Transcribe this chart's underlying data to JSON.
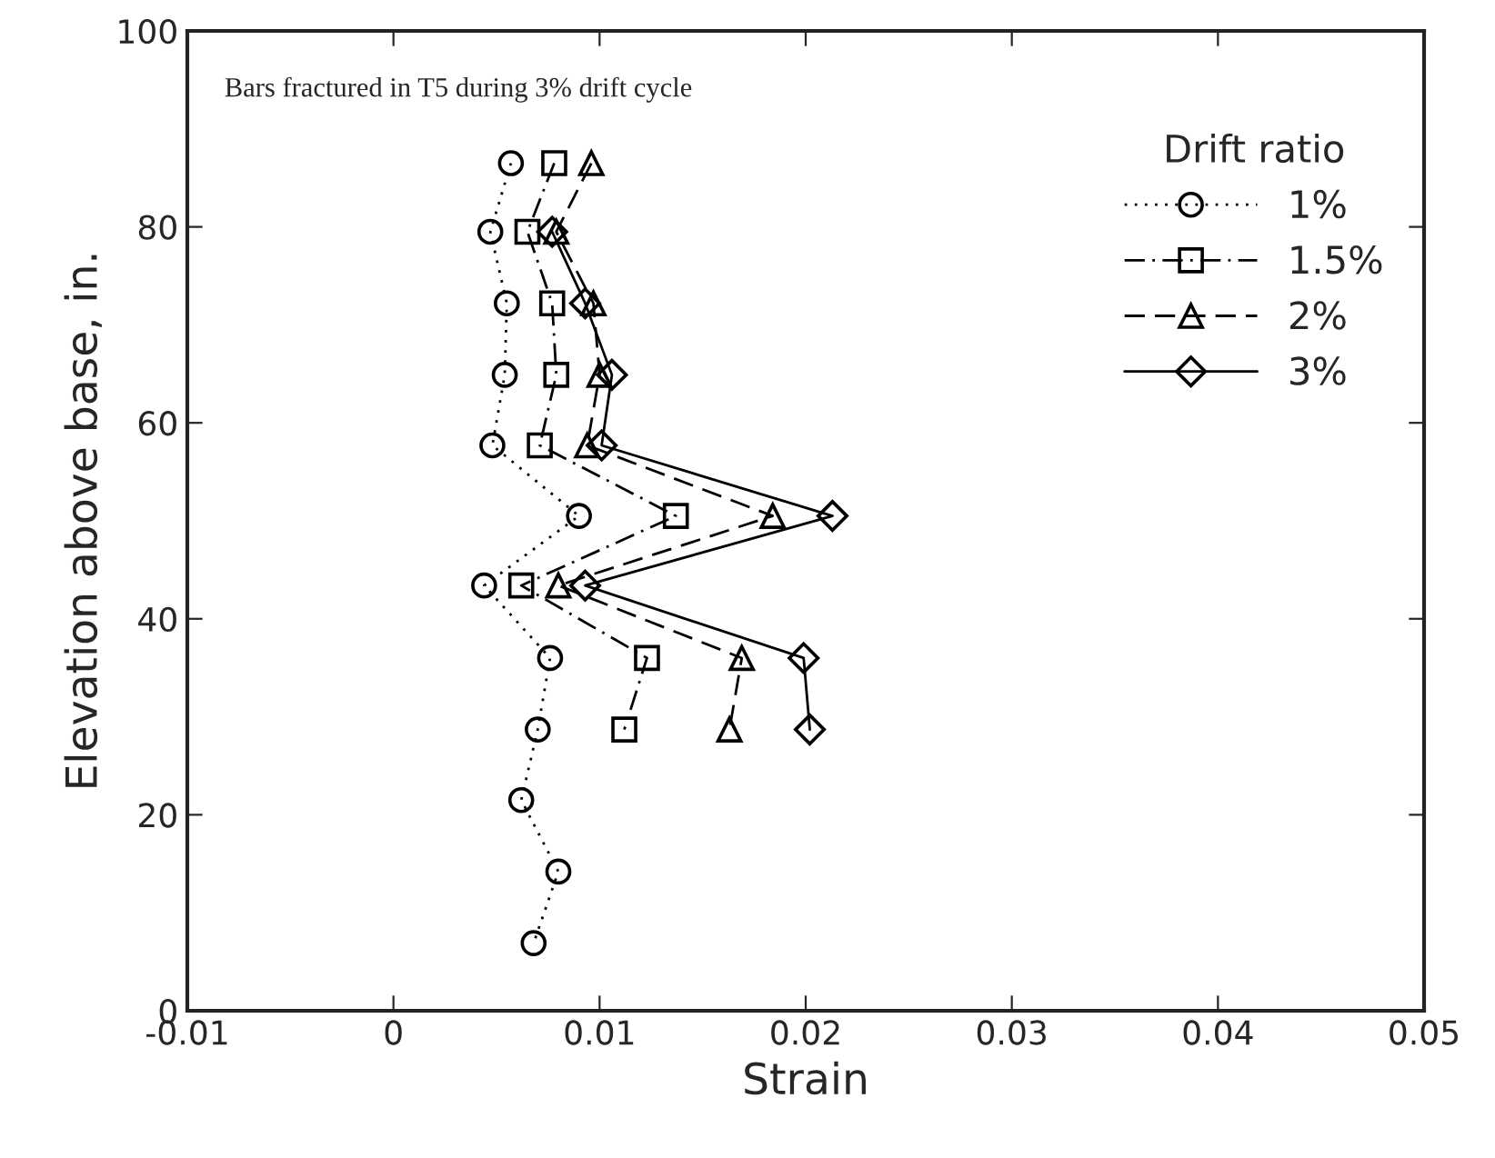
{
  "chart_data": {
    "type": "line",
    "xlabel": "Strain",
    "ylabel": "Elevation above base, in.",
    "legend_title": "Drift ratio",
    "legend": "top right",
    "grid": false,
    "xlim": [
      -0.01,
      0.05
    ],
    "xticks": [
      -0.01,
      0,
      0.01,
      0.02,
      0.03,
      0.04,
      0.05
    ],
    "ylim": [
      0,
      100
    ],
    "yticks": [
      0,
      20,
      40,
      60,
      80,
      100
    ],
    "annotations": [
      "Bars fractured in T5 during 3% drift cycle"
    ],
    "series": [
      {
        "name": "1%",
        "color": "#000000",
        "marker": "circle",
        "line_style": "dotted",
        "x": [
          0.0057,
          0.0047,
          0.0055,
          0.0054,
          0.0048,
          0.009,
          0.0044,
          0.0076,
          0.007,
          0.0062,
          0.008,
          0.0068
        ],
        "values": [
          86.5,
          79.5,
          72.2,
          64.9,
          57.7,
          50.5,
          43.4,
          36.0,
          28.7,
          21.5,
          14.2,
          6.9
        ]
      },
      {
        "name": "1.5%",
        "color": "#000000",
        "marker": "square",
        "line_style": "dashdot",
        "x": [
          0.0078,
          0.0065,
          0.0077,
          0.0079,
          0.0071,
          0.0137,
          0.0062,
          0.0123,
          0.0112
        ],
        "values": [
          86.5,
          79.5,
          72.2,
          64.9,
          57.7,
          50.5,
          43.4,
          36.0,
          28.7
        ]
      },
      {
        "name": "2%",
        "color": "#000000",
        "marker": "triangle",
        "line_style": "dashed",
        "x": [
          0.0096,
          0.0079,
          0.0097,
          0.01,
          0.0094,
          0.0184,
          0.008,
          0.0169,
          0.0163
        ],
        "values": [
          86.5,
          79.5,
          72.2,
          64.9,
          57.7,
          50.5,
          43.4,
          36.0,
          28.7
        ]
      },
      {
        "name": "3%",
        "color": "#000000",
        "marker": "diamond",
        "line_style": "solid",
        "x": [
          0.0077,
          0.0093,
          0.0106,
          0.0101,
          0.0213,
          0.0093,
          0.0199,
          0.0202
        ],
        "values": [
          79.5,
          72.2,
          64.9,
          57.7,
          50.5,
          43.4,
          36.0,
          28.7
        ]
      }
    ]
  }
}
